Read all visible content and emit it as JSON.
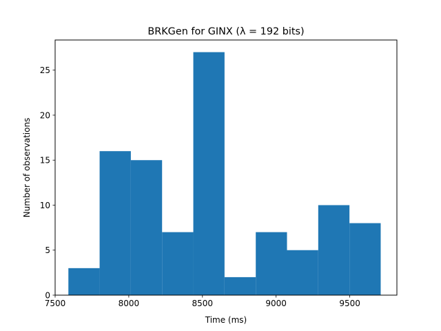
{
  "chart_data": {
    "type": "bar",
    "title": "BRKGen for GINX (λ = 192 bits)",
    "xlabel": "Time (ms)",
    "ylabel": "Number of observations",
    "xlim": [
      7500,
      9820
    ],
    "ylim": [
      0,
      28.35
    ],
    "xticks": [
      7500,
      8000,
      8500,
      9000,
      9500
    ],
    "yticks": [
      0,
      5,
      10,
      15,
      20,
      25
    ],
    "bin_edges": [
      7590,
      7802,
      8014,
      8226,
      8438,
      8650,
      8862,
      9074,
      9286,
      9498,
      9710
    ],
    "values": [
      3,
      16,
      15,
      7,
      27,
      2,
      7,
      5,
      10,
      8
    ],
    "bar_color": "#1f77b4",
    "grid": false,
    "legend": "none"
  }
}
